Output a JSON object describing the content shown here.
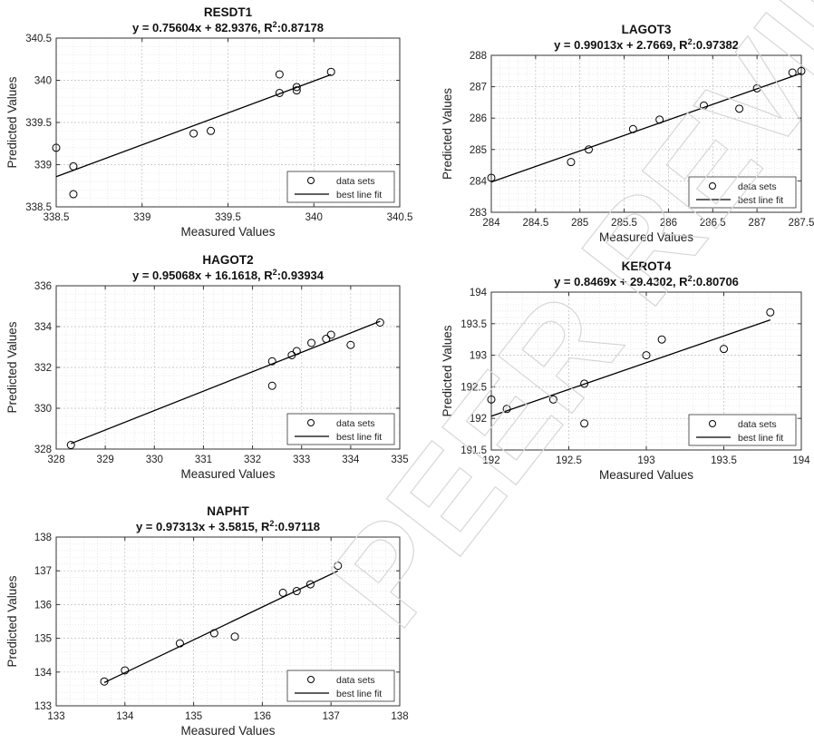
{
  "chart_data": [
    {
      "type": "scatter",
      "title": "RESDT1",
      "equation": "y = 0.75604x + 82.9376, R",
      "r2_label": ":0.87178",
      "xlabel": "Measured Values",
      "ylabel": "Predicted Values",
      "xlim": [
        338.5,
        340.5
      ],
      "ylim": [
        338.5,
        340.5
      ],
      "xticks": [
        "338.5",
        "339",
        "339.5",
        "340",
        "340.5"
      ],
      "yticks": [
        "338.5",
        "339",
        "339.5",
        "340",
        "340.5"
      ],
      "legend": [
        "data sets",
        "best line fit"
      ],
      "points": [
        [
          338.5,
          339.2
        ],
        [
          338.6,
          338.98
        ],
        [
          338.6,
          338.65
        ],
        [
          339.3,
          339.37
        ],
        [
          339.4,
          339.4
        ],
        [
          339.8,
          340.07
        ],
        [
          339.8,
          339.85
        ],
        [
          339.9,
          339.88
        ],
        [
          339.9,
          339.92
        ],
        [
          340.1,
          340.1
        ]
      ],
      "fit": {
        "slope": 0.75604,
        "intercept": 82.9376,
        "x_range": [
          338.5,
          340.1
        ]
      }
    },
    {
      "type": "scatter",
      "title": "LAGOT3",
      "equation": "y = 0.99013x + 2.7669, R",
      "r2_label": ":0.97382",
      "xlabel": "Measured Values",
      "ylabel": "Predicted Values",
      "xlim": [
        284,
        287.5
      ],
      "ylim": [
        283,
        288
      ],
      "xticks": [
        "284",
        "284.5",
        "285",
        "285.5",
        "286",
        "286.5",
        "287",
        "287.5"
      ],
      "yticks": [
        "283",
        "284",
        "285",
        "286",
        "287",
        "288"
      ],
      "legend": [
        "data sets",
        "best line fit"
      ],
      "points": [
        [
          284,
          284.1
        ],
        [
          284.9,
          284.6
        ],
        [
          285.1,
          285
        ],
        [
          285.6,
          285.65
        ],
        [
          285.9,
          285.95
        ],
        [
          286.4,
          286.4
        ],
        [
          286.8,
          286.3
        ],
        [
          287,
          286.95
        ],
        [
          287.4,
          287.45
        ],
        [
          287.5,
          287.5
        ]
      ],
      "fit": {
        "slope": 0.99013,
        "intercept": 2.7669,
        "x_range": [
          284,
          287.5
        ]
      }
    },
    {
      "type": "scatter",
      "title": "HAGOT2",
      "equation": "y = 0.95068x + 16.1618, R",
      "r2_label": ":0.93934",
      "xlabel": "Measured Values",
      "ylabel": "Predicted Values",
      "xlim": [
        328,
        335
      ],
      "ylim": [
        328,
        336
      ],
      "xticks": [
        "328",
        "329",
        "330",
        "331",
        "332",
        "333",
        "334",
        "335"
      ],
      "yticks": [
        "328",
        "330",
        "332",
        "334",
        "336"
      ],
      "legend": [
        "data sets",
        "best line fit"
      ],
      "points": [
        [
          328.3,
          328.2
        ],
        [
          332.4,
          332.3
        ],
        [
          332.4,
          331.1
        ],
        [
          332.8,
          332.6
        ],
        [
          332.9,
          332.8
        ],
        [
          333.2,
          333.2
        ],
        [
          333.5,
          333.4
        ],
        [
          333.6,
          333.6
        ],
        [
          334,
          333.1
        ],
        [
          334.6,
          334.2
        ]
      ],
      "fit": {
        "slope": 0.95068,
        "intercept": 16.1618,
        "x_range": [
          328.3,
          334.6
        ]
      }
    },
    {
      "type": "scatter",
      "title": "KEROT4",
      "equation": "y = 0.8469x + 29.4302, R",
      "r2_label": ":0.80706",
      "xlabel": "Measured Values",
      "ylabel": "Predicted Values",
      "xlim": [
        192,
        194
      ],
      "ylim": [
        191.5,
        194
      ],
      "xticks": [
        "192",
        "192.5",
        "193",
        "193.5",
        "194"
      ],
      "yticks": [
        "191.5",
        "192",
        "192.5",
        "193",
        "193.5",
        "194"
      ],
      "legend": [
        "data sets",
        "best line fit"
      ],
      "points": [
        [
          192,
          192.3
        ],
        [
          192.1,
          192.15
        ],
        [
          192.4,
          192.3
        ],
        [
          192.6,
          192.55
        ],
        [
          192.6,
          191.92
        ],
        [
          193,
          193
        ],
        [
          193.1,
          193.25
        ],
        [
          193.5,
          193.1
        ],
        [
          193.8,
          193.68
        ]
      ],
      "fit": {
        "slope": 0.8469,
        "intercept": 29.4302,
        "x_range": [
          192,
          193.8
        ]
      }
    },
    {
      "type": "scatter",
      "title": "NAPHT",
      "equation": "y = 0.97313x + 3.5815, R",
      "r2_label": ":0.97118",
      "xlabel": "Measured Values",
      "ylabel": "Predicted Values",
      "xlim": [
        133,
        138
      ],
      "ylim": [
        133,
        138
      ],
      "xticks": [
        "133",
        "134",
        "135",
        "136",
        "137",
        "138"
      ],
      "yticks": [
        "133",
        "134",
        "135",
        "136",
        "137",
        "138"
      ],
      "legend": [
        "data sets",
        "best line fit"
      ],
      "points": [
        [
          133.7,
          133.72
        ],
        [
          134,
          134.05
        ],
        [
          134.8,
          134.85
        ],
        [
          135.3,
          135.15
        ],
        [
          135.6,
          135.05
        ],
        [
          136.3,
          136.35
        ],
        [
          136.5,
          136.4
        ],
        [
          136.7,
          136.6
        ],
        [
          137.1,
          137.15
        ]
      ],
      "fit": {
        "slope": 0.97313,
        "intercept": 3.5815,
        "x_range": [
          133.7,
          137.1
        ]
      }
    }
  ],
  "watermark_text": "PEER REVIEW"
}
